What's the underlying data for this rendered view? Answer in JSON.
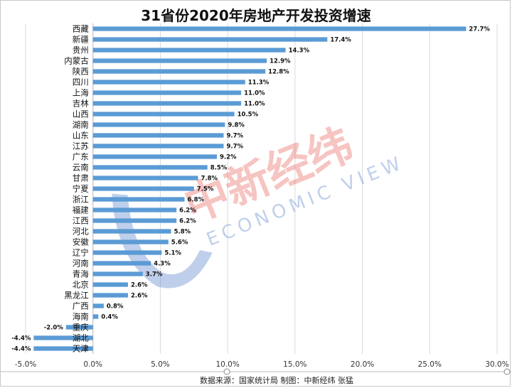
{
  "chart_data": {
    "type": "bar",
    "orientation": "horizontal",
    "title": "31省份2020年房地产开发投资增速",
    "categories": [
      "西藏",
      "新疆",
      "贵州",
      "内蒙古",
      "陕西",
      "四川",
      "上海",
      "吉林",
      "山西",
      "湖南",
      "山东",
      "江苏",
      "广东",
      "云南",
      "甘肃",
      "宁夏",
      "浙江",
      "福建",
      "江西",
      "河北",
      "安徽",
      "辽宁",
      "河南",
      "青海",
      "北京",
      "黑龙江",
      "广西",
      "海南",
      "重庆",
      "湖北",
      "天津"
    ],
    "values": [
      27.7,
      17.4,
      14.3,
      12.9,
      12.8,
      11.3,
      11.0,
      11.0,
      10.5,
      9.8,
      9.7,
      9.7,
      9.2,
      8.5,
      7.8,
      7.5,
      6.8,
      6.2,
      6.2,
      5.8,
      5.6,
      5.1,
      4.3,
      3.7,
      2.6,
      2.6,
      0.8,
      0.4,
      -2.0,
      -4.4,
      -4.4
    ],
    "value_labels": [
      "27.7%",
      "17.4%",
      "14.3%",
      "12.9%",
      "12.8%",
      "11.3%",
      "11.0%",
      "11.0%",
      "10.5%",
      "9.8%",
      "9.7%",
      "9.7%",
      "9.2%",
      "8.5%",
      "7.8%",
      "7.5%",
      "6.8%",
      "6.2%",
      "6.2%",
      "5.8%",
      "5.6%",
      "5.1%",
      "4.3%",
      "3.7%",
      "2.6%",
      "2.6%",
      "0.8%",
      "0.4%",
      "-2.0%",
      "-4.4%",
      "-4.4%"
    ],
    "xlim": [
      -5.0,
      30.0
    ],
    "x_ticks": [
      -5.0,
      0.0,
      5.0,
      10.0,
      15.0,
      20.0,
      25.0,
      30.0
    ],
    "x_tick_labels": [
      "-5.0%",
      "0.0%",
      "5.0%",
      "10.0%",
      "15.0%",
      "20.0%",
      "25.0%",
      "30.0%"
    ],
    "grid": true,
    "bar_color": "#5b9bd5"
  },
  "source_note": "数据来源：国家统计局  制图：中新经纬  张猛",
  "watermark": {
    "chinese": "中新经纬",
    "english": "ECONOMIC VIEW",
    "color_red": "#e8584f",
    "color_blue": "#4a78c8"
  }
}
